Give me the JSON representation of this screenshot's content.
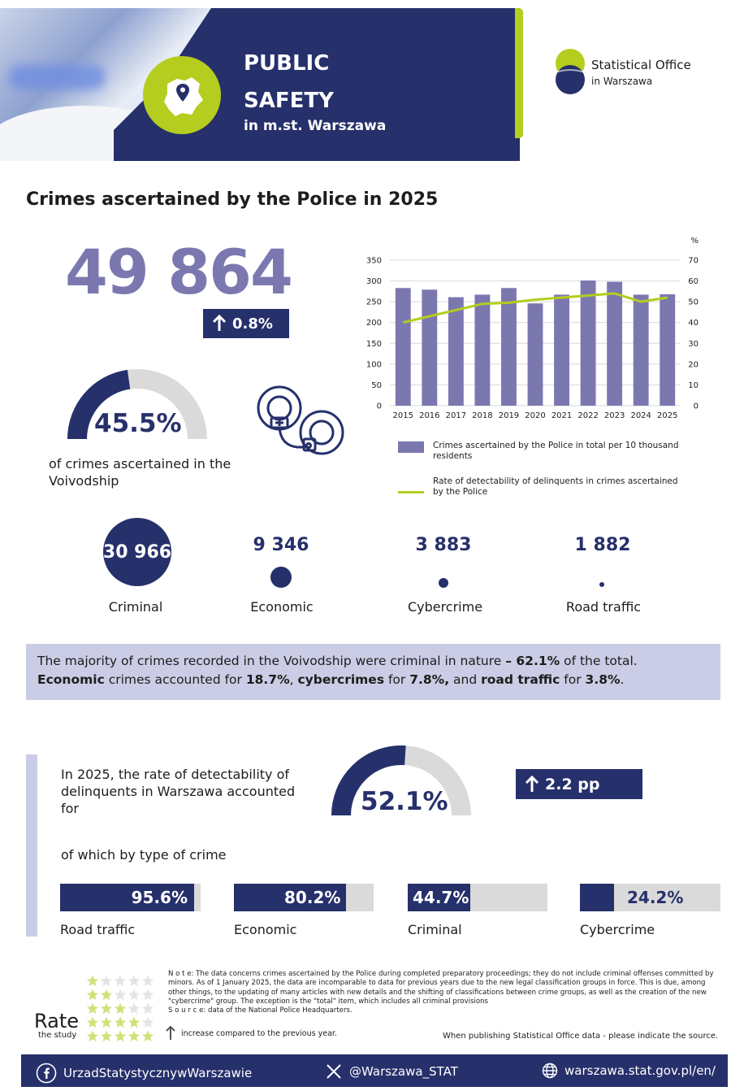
{
  "header": {
    "title_line1": "PUBLIC",
    "title_line2": "SAFETY",
    "subtitle": "in m.st. Warszawa",
    "icon": "location-pin-icon"
  },
  "logo": {
    "line1": "Statistical Office",
    "line2": "in Warszawa"
  },
  "main_title": "Crimes ascertained by the Police in 2025",
  "total": {
    "value": "49 864",
    "change": "0.8%"
  },
  "gauge_voivodship": {
    "value": "45.5%",
    "fraction": 0.455,
    "caption": "of crimes ascertained in the Voivodship"
  },
  "chart_data": {
    "type": "bar",
    "categories": [
      "2015",
      "2016",
      "2017",
      "2018",
      "2019",
      "2020",
      "2021",
      "2022",
      "2023",
      "2024",
      "2025"
    ],
    "series": [
      {
        "name": "Crimes ascertained by the Police in total per 10 thousand residents",
        "type": "bar",
        "axis": "left",
        "values": [
          283,
          279,
          261,
          267,
          283,
          246,
          267,
          301,
          298,
          267,
          268
        ]
      },
      {
        "name": "Rate of detectability of delinquents in crimes ascertained by the Police",
        "type": "line",
        "axis": "right",
        "values": [
          40,
          43,
          46,
          49,
          49.5,
          51,
          52,
          53,
          54,
          50,
          52
        ]
      }
    ],
    "y_left": {
      "min": 0,
      "max": 350,
      "ticks": [
        0,
        50,
        100,
        150,
        200,
        250,
        300,
        350
      ]
    },
    "y_right": {
      "min": 0,
      "max": 70,
      "ticks": [
        0,
        10,
        20,
        30,
        40,
        50,
        60,
        70
      ],
      "unit": "%"
    },
    "colors": {
      "bar": "#7b78b0",
      "line": "#b4cd1f",
      "grid": "#d9d9d9"
    },
    "grid": true,
    "legend": "bottom"
  },
  "categories": [
    {
      "value": "30 966",
      "label": "Criminal"
    },
    {
      "value": "9 346",
      "label": "Economic"
    },
    {
      "value": "3 883",
      "label": "Cybercrime"
    },
    {
      "value": "1 882",
      "label": "Road traffic"
    }
  ],
  "info": {
    "line1_a": "The majority of crimes recorded in the Voivodship were criminal in nature ",
    "line1_b": "– 62.1%",
    "line1_c": " of the total.",
    "line2_a": "Economic",
    "line2_b": " crimes accounted for ",
    "line2_c": "18.7%",
    "line2_d": ", ",
    "line2_e": "cybercrimes",
    "line2_f": " for ",
    "line2_g": "7.8%,",
    "line2_h": " and ",
    "line2_i": "road traffic",
    "line2_j": " for ",
    "line2_k": "3.8%",
    "line2_l": "."
  },
  "detectability": {
    "caption": "In 2025, the rate of detectability of delinquents in Warszawa accounted for",
    "value": "52.1%",
    "fraction": 0.521,
    "change": "2.2 pp",
    "by_type_caption": "of which by type of crime",
    "types": [
      {
        "label": "Road traffic",
        "value": "95.6%",
        "fraction": 0.956
      },
      {
        "label": "Economic",
        "value": "80.2%",
        "fraction": 0.802
      },
      {
        "label": "Criminal",
        "value": "44.7%",
        "fraction": 0.447
      },
      {
        "label": "Cybercrime",
        "value": "24.2%",
        "fraction": 0.242
      }
    ]
  },
  "footer": {
    "rate_word": "Rate",
    "rate_sub": "the study",
    "note": "N o t e: The data concerns crimes ascertained by the Police during completed preparatory proceedings; they do not include criminal offenses committed by minors. As of 1 January 2025, the data are incomparable to data for previous years due to the new legal classification groups in force. This is due, among other things, to the updating of many articles with new details and the shifting of classifications between crime groups, as well as the creation of the new \"cybercrime\" group. The exception is the \"total\" item, which includes all criminal provisions",
    "source": "S o u r c e: data of the National Police Headquarters.",
    "arrow_note": "increase compared to the previous year.",
    "publish_note": "When publishing Statistical Office data - please indicate the source.",
    "facebook": "UrzadStatystycznywWarszawie",
    "x_handle": "@Warszawa_STAT",
    "website": "warszawa.stat.gov.pl/en/"
  }
}
